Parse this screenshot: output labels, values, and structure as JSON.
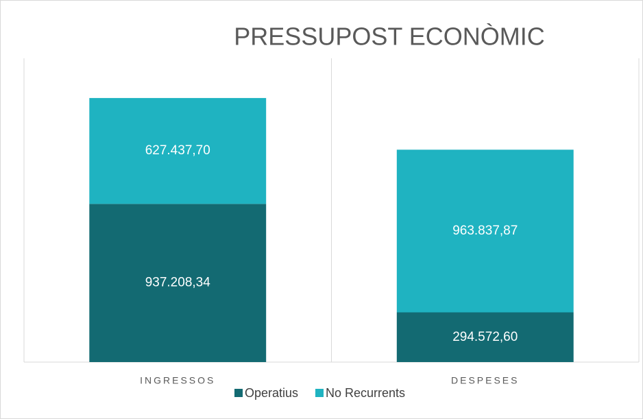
{
  "chart_data": {
    "type": "stacked_bar",
    "title": "PRESSUPOST ECONÒMIC",
    "categories": [
      "INGRESSOS",
      "DESPESES"
    ],
    "series": [
      {
        "name": "Operatius",
        "color": "#136a72",
        "values": [
          937208.34,
          294572.6
        ],
        "value_labels": [
          "937.208,34",
          "294.572,60"
        ]
      },
      {
        "name": "No Recurrents",
        "color": "#1fb3c1",
        "values": [
          627437.7,
          963837.87
        ],
        "value_labels": [
          "627.437,70",
          "963.837,87"
        ]
      }
    ],
    "ylim": [
      0,
      1800000
    ],
    "legend": "bottom"
  }
}
